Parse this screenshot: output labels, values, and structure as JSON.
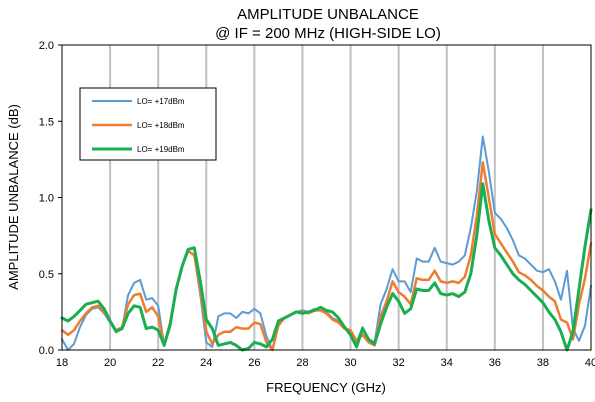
{
  "chart_data": {
    "type": "line",
    "title": "AMPLITUDE UNBALANCE",
    "subtitle": "@ IF = 200 MHz (HIGH-SIDE LO)",
    "xlabel": "FREQUENCY (GHz)",
    "ylabel": "AMPLITUDE UNBALANCE (dB)",
    "xlim": [
      18,
      40
    ],
    "ylim": [
      0,
      2.0
    ],
    "xticks": [
      "18",
      "20",
      "22",
      "24",
      "26",
      "28",
      "30",
      "32",
      "34",
      "36",
      "38",
      "40"
    ],
    "yticks": [
      "0.0",
      "0.5",
      "1.0",
      "1.5",
      "2.0"
    ],
    "grid": "vertical",
    "legend_position": "top-left",
    "series": [
      {
        "name": "LO= +17dBm",
        "color": "#5b9bd5",
        "x": [
          18.0,
          18.25,
          18.5,
          18.75,
          19.0,
          19.25,
          19.5,
          19.75,
          20.0,
          20.25,
          20.5,
          20.75,
          21.0,
          21.25,
          21.5,
          21.75,
          22.0,
          22.25,
          22.5,
          22.75,
          23.0,
          23.25,
          23.5,
          23.75,
          24.0,
          24.25,
          24.5,
          24.75,
          25.0,
          25.25,
          25.5,
          25.75,
          26.0,
          26.25,
          26.5,
          26.75,
          27.0,
          27.25,
          27.5,
          27.75,
          28.0,
          28.25,
          28.5,
          28.75,
          29.0,
          29.25,
          29.5,
          29.75,
          30.0,
          30.25,
          30.5,
          30.75,
          31.0,
          31.25,
          31.5,
          31.75,
          32.0,
          32.25,
          32.5,
          32.75,
          33.0,
          33.25,
          33.5,
          33.75,
          34.0,
          34.25,
          34.5,
          34.75,
          35.0,
          35.25,
          35.5,
          35.75,
          36.0,
          36.25,
          36.5,
          36.75,
          37.0,
          37.25,
          37.5,
          37.75,
          38.0,
          38.25,
          38.5,
          38.75,
          39.0,
          39.25,
          39.5,
          39.75,
          40.0
        ],
        "values": [
          0.07,
          0.0,
          0.04,
          0.15,
          0.23,
          0.27,
          0.28,
          0.24,
          0.18,
          0.12,
          0.14,
          0.36,
          0.44,
          0.46,
          0.33,
          0.34,
          0.29,
          0.03,
          0.15,
          0.4,
          0.55,
          0.65,
          0.62,
          0.36,
          0.05,
          0.02,
          0.22,
          0.24,
          0.24,
          0.21,
          0.25,
          0.24,
          0.27,
          0.24,
          0.09,
          0.0,
          0.17,
          0.21,
          0.23,
          0.25,
          0.26,
          0.25,
          0.27,
          0.26,
          0.25,
          0.21,
          0.19,
          0.15,
          0.12,
          0.05,
          0.15,
          0.07,
          0.05,
          0.3,
          0.4,
          0.53,
          0.45,
          0.45,
          0.38,
          0.6,
          0.58,
          0.58,
          0.67,
          0.58,
          0.57,
          0.56,
          0.58,
          0.62,
          0.8,
          1.04,
          1.4,
          1.17,
          0.9,
          0.86,
          0.8,
          0.72,
          0.62,
          0.6,
          0.56,
          0.52,
          0.51,
          0.53,
          0.45,
          0.33,
          0.52,
          0.14,
          0.06,
          0.16,
          0.42
        ]
      },
      {
        "name": "LO= +18dBm",
        "color": "#ed7d31",
        "x": [
          18.0,
          18.25,
          18.5,
          18.75,
          19.0,
          19.25,
          19.5,
          19.75,
          20.0,
          20.25,
          20.5,
          20.75,
          21.0,
          21.25,
          21.5,
          21.75,
          22.0,
          22.25,
          22.5,
          22.75,
          23.0,
          23.25,
          23.5,
          23.75,
          24.0,
          24.25,
          24.5,
          24.75,
          25.0,
          25.25,
          25.5,
          25.75,
          26.0,
          26.25,
          26.5,
          26.75,
          27.0,
          27.25,
          27.5,
          27.75,
          28.0,
          28.25,
          28.5,
          28.75,
          29.0,
          29.25,
          29.5,
          29.75,
          30.0,
          30.25,
          30.5,
          30.75,
          31.0,
          31.25,
          31.5,
          31.75,
          32.0,
          32.25,
          32.5,
          32.75,
          33.0,
          33.25,
          33.5,
          33.75,
          34.0,
          34.25,
          34.5,
          34.75,
          35.0,
          35.25,
          35.5,
          35.75,
          36.0,
          36.25,
          36.5,
          36.75,
          37.0,
          37.25,
          37.5,
          37.75,
          38.0,
          38.25,
          38.5,
          38.75,
          39.0,
          39.25,
          39.5,
          39.75,
          40.0
        ],
        "values": [
          0.13,
          0.1,
          0.13,
          0.19,
          0.24,
          0.28,
          0.29,
          0.25,
          0.19,
          0.13,
          0.15,
          0.3,
          0.36,
          0.37,
          0.25,
          0.28,
          0.22,
          0.03,
          0.18,
          0.4,
          0.55,
          0.65,
          0.62,
          0.4,
          0.12,
          0.04,
          0.1,
          0.12,
          0.12,
          0.15,
          0.14,
          0.14,
          0.18,
          0.17,
          0.05,
          0.0,
          0.16,
          0.21,
          0.23,
          0.25,
          0.25,
          0.24,
          0.26,
          0.26,
          0.24,
          0.2,
          0.18,
          0.14,
          0.13,
          0.06,
          0.1,
          0.05,
          0.03,
          0.22,
          0.32,
          0.45,
          0.38,
          0.35,
          0.3,
          0.47,
          0.46,
          0.46,
          0.52,
          0.45,
          0.44,
          0.45,
          0.44,
          0.48,
          0.62,
          0.88,
          1.23,
          1.0,
          0.76,
          0.7,
          0.64,
          0.58,
          0.51,
          0.49,
          0.46,
          0.42,
          0.39,
          0.35,
          0.32,
          0.2,
          0.18,
          0.07,
          0.3,
          0.47,
          0.7
        ]
      },
      {
        "name": "LO= +19dBm",
        "color": "#1aae50",
        "x": [
          18.0,
          18.25,
          18.5,
          18.75,
          19.0,
          19.25,
          19.5,
          19.75,
          20.0,
          20.25,
          20.5,
          20.75,
          21.0,
          21.25,
          21.5,
          21.75,
          22.0,
          22.25,
          22.5,
          22.75,
          23.0,
          23.25,
          23.5,
          23.75,
          24.0,
          24.25,
          24.5,
          24.75,
          25.0,
          25.25,
          25.5,
          25.75,
          26.0,
          26.25,
          26.5,
          26.75,
          27.0,
          27.25,
          27.5,
          27.75,
          28.0,
          28.25,
          28.5,
          28.75,
          29.0,
          29.25,
          29.5,
          29.75,
          30.0,
          30.25,
          30.5,
          30.75,
          31.0,
          31.25,
          31.5,
          31.75,
          32.0,
          32.25,
          32.5,
          32.75,
          33.0,
          33.25,
          33.5,
          33.75,
          34.0,
          34.25,
          34.5,
          34.75,
          35.0,
          35.25,
          35.5,
          35.75,
          36.0,
          36.25,
          36.5,
          36.75,
          37.0,
          37.25,
          37.5,
          37.75,
          38.0,
          38.25,
          38.5,
          38.75,
          39.0,
          39.25,
          39.5,
          39.75,
          40.0
        ],
        "values": [
          0.21,
          0.19,
          0.22,
          0.26,
          0.3,
          0.31,
          0.32,
          0.27,
          0.19,
          0.12,
          0.14,
          0.24,
          0.29,
          0.28,
          0.14,
          0.15,
          0.13,
          0.03,
          0.17,
          0.4,
          0.55,
          0.66,
          0.67,
          0.45,
          0.2,
          0.14,
          0.03,
          0.04,
          0.05,
          0.03,
          0.0,
          0.01,
          0.05,
          0.04,
          0.02,
          0.07,
          0.19,
          0.21,
          0.23,
          0.25,
          0.24,
          0.25,
          0.26,
          0.28,
          0.26,
          0.25,
          0.21,
          0.15,
          0.1,
          0.02,
          0.14,
          0.07,
          0.04,
          0.17,
          0.28,
          0.37,
          0.32,
          0.24,
          0.27,
          0.4,
          0.39,
          0.39,
          0.44,
          0.37,
          0.36,
          0.37,
          0.35,
          0.38,
          0.5,
          0.75,
          1.09,
          0.85,
          0.67,
          0.62,
          0.56,
          0.5,
          0.46,
          0.43,
          0.39,
          0.35,
          0.31,
          0.25,
          0.2,
          0.12,
          0.0,
          0.12,
          0.4,
          0.68,
          0.92
        ]
      }
    ]
  }
}
